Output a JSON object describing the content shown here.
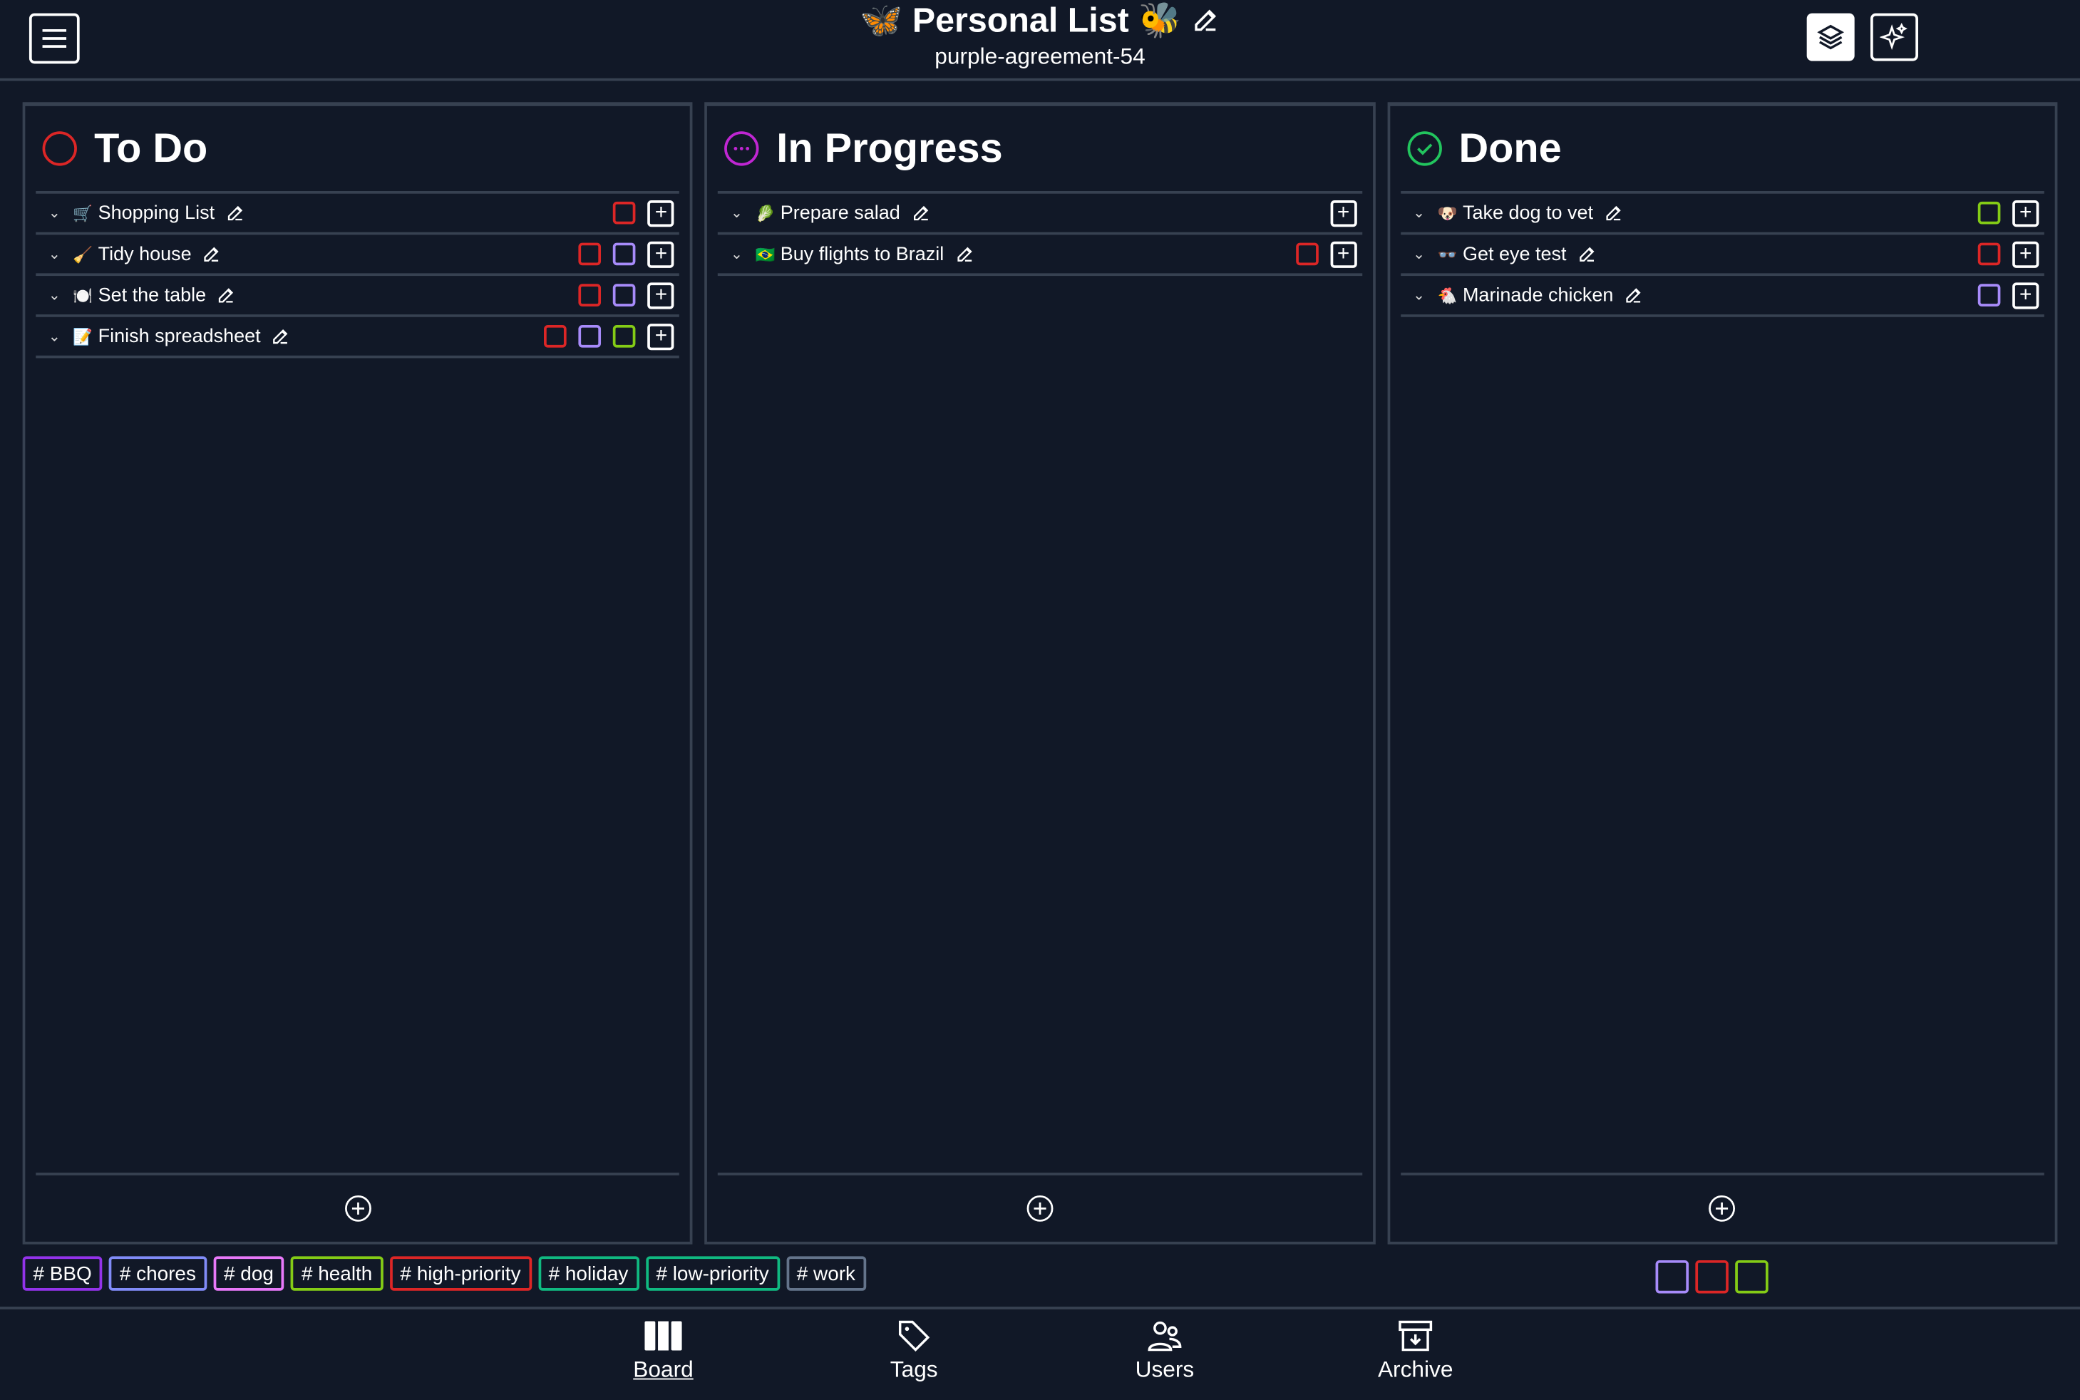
{
  "header": {
    "title_prefix_emoji": "🦋",
    "title": "Personal List",
    "title_suffix_emoji": "🐝",
    "subtitle": "purple-agreement-54"
  },
  "columns": [
    {
      "title": "To Do",
      "status_color": "#dc2626",
      "icon": "circle-icon",
      "items": [
        {
          "emoji": "🛒",
          "label": "Shopping List",
          "tags": [
            "#dc2626"
          ]
        },
        {
          "emoji": "🧹",
          "label": "Tidy house",
          "tags": [
            "#dc2626",
            "#a78bfa"
          ]
        },
        {
          "emoji": "🍽️",
          "label": "Set the table",
          "tags": [
            "#dc2626",
            "#a78bfa"
          ]
        },
        {
          "emoji": "📝",
          "label": "Finish spreadsheet",
          "tags": [
            "#dc2626",
            "#a78bfa",
            "#84cc16"
          ]
        }
      ]
    },
    {
      "title": "In Progress",
      "status_color": "#c026d3",
      "icon": "ellipsis-circle-icon",
      "items": [
        {
          "emoji": "🥬",
          "label": "Prepare salad",
          "tags": []
        },
        {
          "emoji": "🇧🇷",
          "label": "Buy flights to Brazil",
          "tags": [
            "#dc2626"
          ]
        }
      ]
    },
    {
      "title": "Done",
      "status_color": "#22c55e",
      "icon": "check-circle-icon",
      "items": [
        {
          "emoji": "🐶",
          "label": "Take dog to vet",
          "tags": [
            "#84cc16"
          ]
        },
        {
          "emoji": "👓",
          "label": "Get eye test",
          "tags": [
            "#dc2626"
          ]
        },
        {
          "emoji": "🐔",
          "label": "Marinade chicken",
          "tags": [
            "#a78bfa"
          ]
        }
      ]
    }
  ],
  "tags": [
    {
      "label": "# BBQ",
      "color": "#9333ea"
    },
    {
      "label": "# chores",
      "color": "#818cf8"
    },
    {
      "label": "# dog",
      "color": "#e879f9"
    },
    {
      "label": "# health",
      "color": "#84cc16"
    },
    {
      "label": "# high-priority",
      "color": "#dc2626"
    },
    {
      "label": "# holiday",
      "color": "#10b981"
    },
    {
      "label": "# low-priority",
      "color": "#10b981"
    },
    {
      "label": "# work",
      "color": "#64748b"
    }
  ],
  "filters": [
    "#a78bfa",
    "#dc2626",
    "#84cc16"
  ],
  "nav": [
    {
      "label": "Board",
      "active": true
    },
    {
      "label": "Tags"
    },
    {
      "label": "Users"
    },
    {
      "label": "Archive"
    }
  ]
}
